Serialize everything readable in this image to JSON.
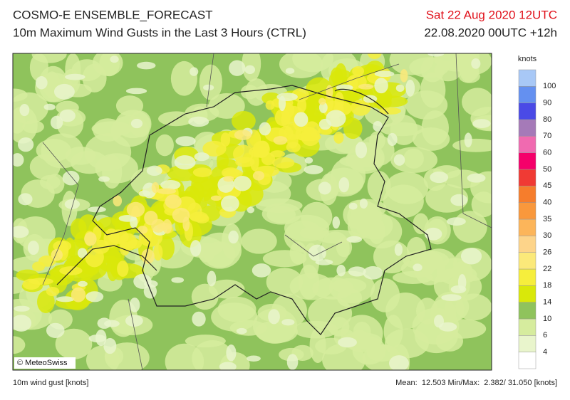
{
  "header": {
    "title": "COSMO-E ENSEMBLE_FORECAST",
    "subtitle": "10m Maximum Wind Gusts in the Last 3 Hours (CTRL)",
    "valid_time": "Sat 22 Aug 2020 12UTC",
    "run_time": "22.08.2020 00UTC +12h"
  },
  "legend": {
    "unit": "knots",
    "labels": [
      "4",
      "6",
      "10",
      "14",
      "18",
      "22",
      "26",
      "30",
      "35",
      "40",
      "45",
      "50",
      "60",
      "70",
      "80",
      "90",
      "100"
    ],
    "colors": [
      "#ffffff",
      "#e9f5cc",
      "#d6ec9e",
      "#8fc35c",
      "#d9e80a",
      "#f6ee3c",
      "#fbe97a",
      "#fdd48a",
      "#fcb55a",
      "#f9983c",
      "#f67d2c",
      "#f03a34",
      "#f5006a",
      "#f06ab0",
      "#a57ab8",
      "#4a4ae6",
      "#6490f0",
      "#a8c8f6"
    ]
  },
  "map": {
    "copyright": "© MeteoSwiss"
  },
  "footer": {
    "variable": "10m wind gust [knots]",
    "stats": "Mean:  12.503 Min/Max:  2.382/ 31.050 [knots]"
  }
}
